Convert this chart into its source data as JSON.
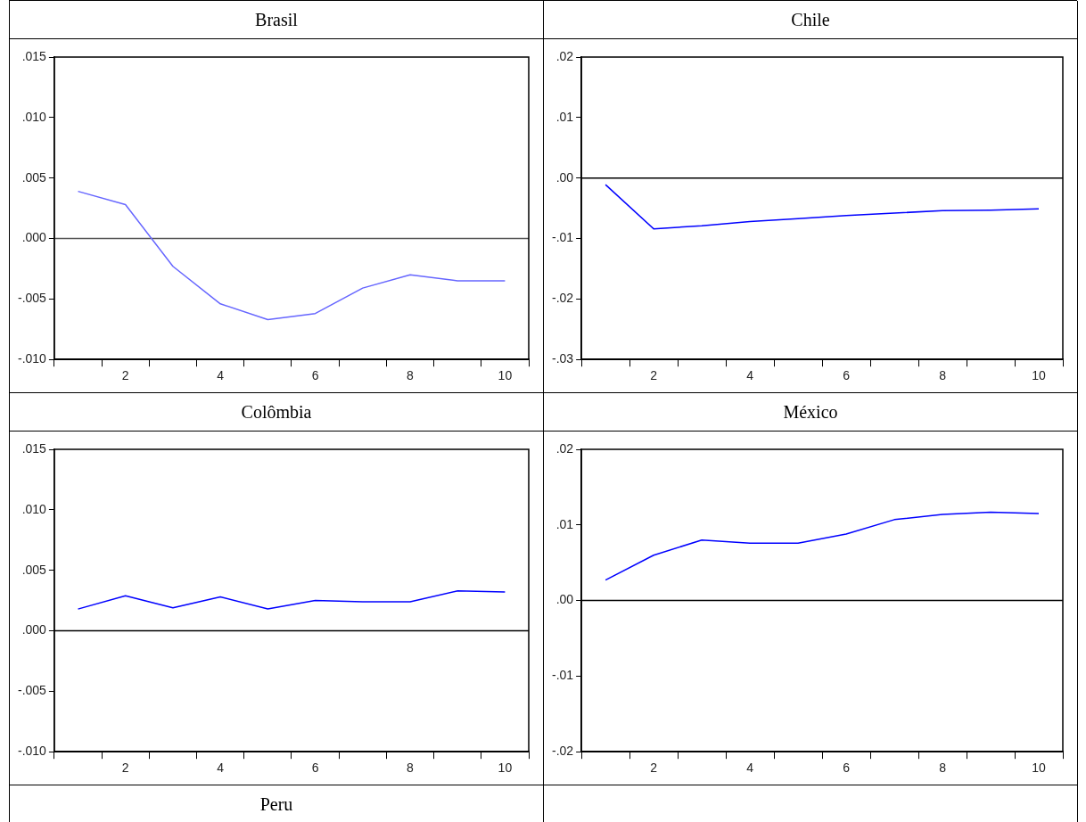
{
  "chart_data": [
    {
      "type": "line",
      "title": "Brasil",
      "categories": [
        null,
        "2",
        null,
        "4",
        null,
        "6",
        null,
        "8",
        null,
        "10"
      ],
      "series": [
        {
          "color": "#6666ff",
          "values": [
            0.0039,
            0.0028,
            -0.0023,
            -0.0054,
            -0.0067,
            -0.0062,
            -0.0041,
            -0.003,
            -0.0035,
            -0.0035
          ]
        }
      ],
      "ylim": [
        -0.01,
        0.015
      ],
      "yticks": [
        {
          "value": -0.01,
          "label": "-.010"
        },
        {
          "value": -0.005,
          "label": "-.005"
        },
        {
          "value": 0,
          "label": ".000"
        },
        {
          "value": 0.005,
          "label": ".005"
        },
        {
          "value": 0.01,
          "label": ".010"
        },
        {
          "value": 0.015,
          "label": ".015"
        }
      ],
      "ref_lines": [
        {
          "axis": "y",
          "value": 0,
          "color": "#555555"
        }
      ]
    },
    {
      "type": "line",
      "title": "Chile",
      "categories": [
        null,
        "2",
        null,
        "4",
        null,
        "6",
        null,
        "8",
        null,
        "10"
      ],
      "series": [
        {
          "color": "#0000ff",
          "values": [
            -0.0011,
            -0.0084,
            -0.0079,
            -0.0072,
            -0.0067,
            -0.0062,
            -0.0058,
            -0.0054,
            -0.0053,
            -0.0051
          ]
        }
      ],
      "ylim": [
        -0.03,
        0.02
      ],
      "yticks": [
        {
          "value": -0.03,
          "label": "-.03"
        },
        {
          "value": -0.02,
          "label": "-.02"
        },
        {
          "value": -0.01,
          "label": "-.01"
        },
        {
          "value": 0,
          "label": ".00"
        },
        {
          "value": 0.01,
          "label": ".01"
        },
        {
          "value": 0.02,
          "label": ".02"
        }
      ],
      "ref_lines": [
        {
          "axis": "y",
          "value": 0,
          "color": "#000000"
        }
      ]
    },
    {
      "type": "line",
      "title": "Colômbia",
      "categories": [
        null,
        "2",
        null,
        "4",
        null,
        "6",
        null,
        "8",
        null,
        "10"
      ],
      "series": [
        {
          "color": "#0000ff",
          "values": [
            0.0018,
            0.0029,
            0.0019,
            0.0028,
            0.0018,
            0.0025,
            0.0024,
            0.0024,
            0.0033,
            0.0032
          ]
        }
      ],
      "ylim": [
        -0.01,
        0.015
      ],
      "yticks": [
        {
          "value": -0.01,
          "label": "-.010"
        },
        {
          "value": -0.005,
          "label": "-.005"
        },
        {
          "value": 0,
          "label": ".000"
        },
        {
          "value": 0.005,
          "label": ".005"
        },
        {
          "value": 0.01,
          "label": ".010"
        },
        {
          "value": 0.015,
          "label": ".015"
        }
      ],
      "ref_lines": [
        {
          "axis": "y",
          "value": 0,
          "color": "#000000"
        }
      ]
    },
    {
      "type": "line",
      "title": "México",
      "categories": [
        null,
        "2",
        null,
        "4",
        null,
        "6",
        null,
        "8",
        null,
        "10"
      ],
      "series": [
        {
          "color": "#0000ff",
          "values": [
            0.0027,
            0.006,
            0.008,
            0.0076,
            0.0076,
            0.0088,
            0.0107,
            0.0114,
            0.0117,
            0.0115
          ]
        }
      ],
      "ylim": [
        -0.02,
        0.02
      ],
      "yticks": [
        {
          "value": -0.02,
          "label": "-.02"
        },
        {
          "value": -0.01,
          "label": "-.01"
        },
        {
          "value": 0,
          "label": ".00"
        },
        {
          "value": 0.01,
          "label": ".01"
        },
        {
          "value": 0.02,
          "label": ".02"
        }
      ],
      "ref_lines": [
        {
          "axis": "y",
          "value": 0,
          "color": "#000000"
        }
      ]
    },
    {
      "type": "other",
      "title": "Peru"
    }
  ]
}
